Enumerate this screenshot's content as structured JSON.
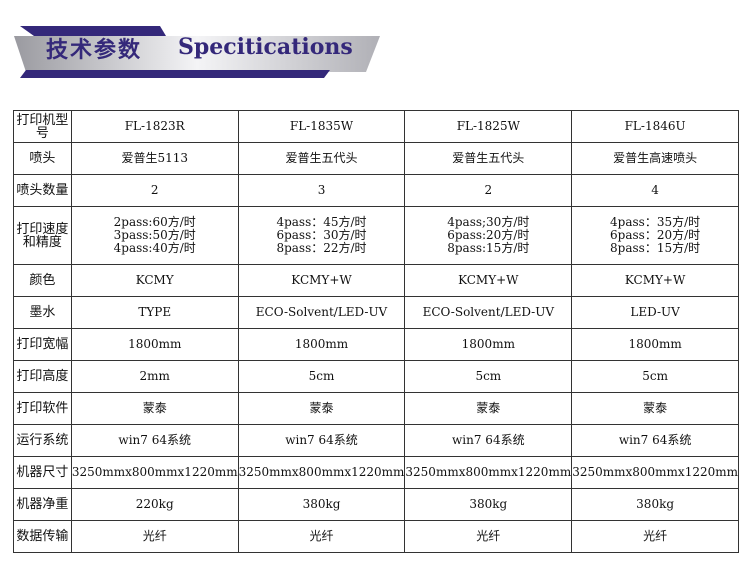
{
  "banner": {
    "title_cn": "技术参数",
    "title_en": "Specitications"
  },
  "colors": {
    "banner_blue": "#34287a",
    "banner_silver": "#c8c8cc"
  },
  "table": {
    "rows": [
      {
        "label": "打印机型号",
        "values": [
          "FL-1823R",
          "FL-1835W",
          "FL-1825W",
          "FL-1846U"
        ]
      },
      {
        "label": "喷头",
        "values": [
          "爱普生5113",
          "爱普生五代头",
          "爱普生五代头",
          "爱普生高速喷头"
        ]
      },
      {
        "label": "喷头数量",
        "values": [
          "2",
          "3",
          "2",
          "4"
        ]
      },
      {
        "label": "打印速度和精度",
        "values": [
          [
            "2pass:60方/时",
            "3pass:50方/时",
            "4pass:40方/时"
          ],
          [
            "4pass：45方/时",
            "6pass：30方/时",
            "8pass：22方/时"
          ],
          [
            "4pass;30方/时",
            "6pass:20方/时",
            "8pass:15方/时"
          ],
          [
            "4pass：35方/时",
            "6pass：20方/时",
            "8pass：15方/时"
          ]
        ]
      },
      {
        "label": "颜色",
        "values": [
          "KCMY",
          "KCMY+W",
          "KCMY+W",
          "KCMY+W"
        ]
      },
      {
        "label": "墨水",
        "values": [
          "TYPE",
          "ECO-Solvent/LED-UV",
          "ECO-Solvent/LED-UV",
          "LED-UV"
        ]
      },
      {
        "label": "打印宽幅",
        "values": [
          "1800mm",
          "1800mm",
          "1800mm",
          "1800mm"
        ]
      },
      {
        "label": "打印高度",
        "values": [
          "2mm",
          "5cm",
          "5cm",
          "5cm"
        ]
      },
      {
        "label": "打印软件",
        "values": [
          "蒙泰",
          "蒙泰",
          "蒙泰",
          "蒙泰"
        ]
      },
      {
        "label": "运行系统",
        "values": [
          "win7  64系统",
          "win7  64系统",
          "win7  64系统",
          "win7  64系统"
        ]
      },
      {
        "label": "机器尺寸",
        "values": [
          "3250mmx800mmx1220mm",
          "3250mmx800mmx1220mm",
          "3250mmx800mmx1220mm",
          "3250mmx800mmx1220mm"
        ]
      },
      {
        "label": "机器净重",
        "values": [
          "220kg",
          "380kg",
          "380kg",
          "380kg"
        ]
      },
      {
        "label": "数据传输",
        "values": [
          "光纤",
          "光纤",
          "光纤",
          "光纤"
        ]
      }
    ]
  }
}
